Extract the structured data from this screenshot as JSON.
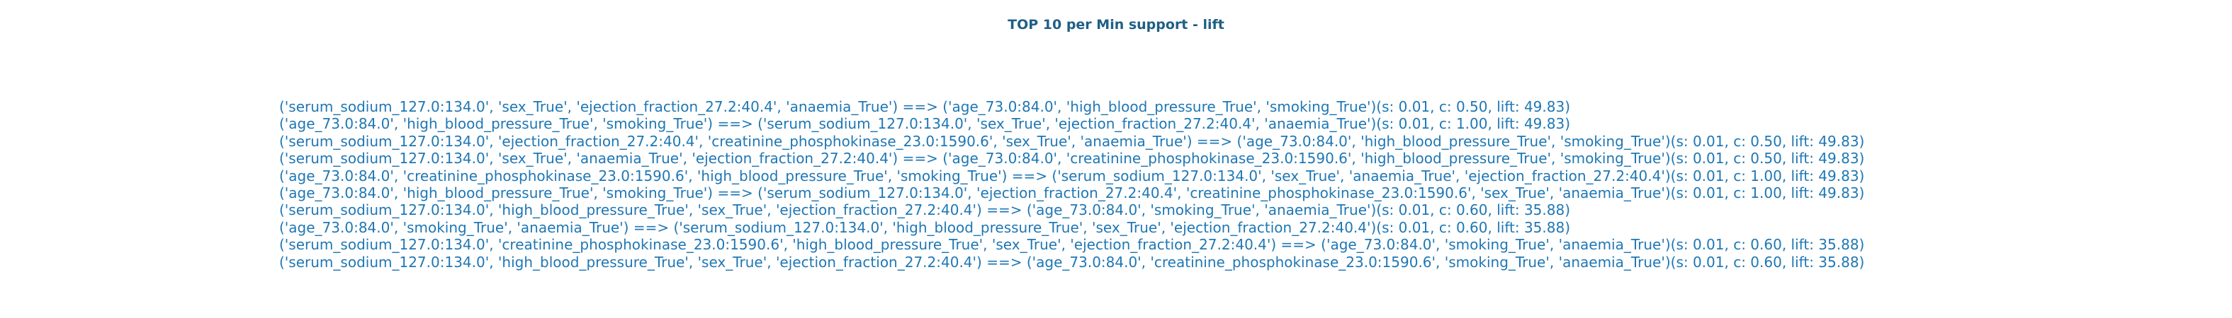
{
  "chart_data": {
    "type": "table",
    "title": "TOP 10 per Min support - lift",
    "rows": [
      "('serum_sodium_127.0:134.0', 'sex_True', 'ejection_fraction_27.2:40.4', 'anaemia_True') ==> ('age_73.0:84.0', 'high_blood_pressure_True', 'smoking_True')(s: 0.01, c: 0.50, lift: 49.83)",
      "('age_73.0:84.0', 'high_blood_pressure_True', 'smoking_True') ==> ('serum_sodium_127.0:134.0', 'sex_True', 'ejection_fraction_27.2:40.4', 'anaemia_True')(s: 0.01, c: 1.00, lift: 49.83)",
      "('serum_sodium_127.0:134.0', 'ejection_fraction_27.2:40.4', 'creatinine_phosphokinase_23.0:1590.6', 'sex_True', 'anaemia_True') ==> ('age_73.0:84.0', 'high_blood_pressure_True', 'smoking_True')(s: 0.01, c: 0.50, lift: 49.83)",
      "('serum_sodium_127.0:134.0', 'sex_True', 'anaemia_True', 'ejection_fraction_27.2:40.4') ==> ('age_73.0:84.0', 'creatinine_phosphokinase_23.0:1590.6', 'high_blood_pressure_True', 'smoking_True')(s: 0.01, c: 0.50, lift: 49.83)",
      "('age_73.0:84.0', 'creatinine_phosphokinase_23.0:1590.6', 'high_blood_pressure_True', 'smoking_True') ==> ('serum_sodium_127.0:134.0', 'sex_True', 'anaemia_True', 'ejection_fraction_27.2:40.4')(s: 0.01, c: 1.00, lift: 49.83)",
      "('age_73.0:84.0', 'high_blood_pressure_True', 'smoking_True') ==> ('serum_sodium_127.0:134.0', 'ejection_fraction_27.2:40.4', 'creatinine_phosphokinase_23.0:1590.6', 'sex_True', 'anaemia_True')(s: 0.01, c: 1.00, lift: 49.83)",
      "('serum_sodium_127.0:134.0', 'high_blood_pressure_True', 'sex_True', 'ejection_fraction_27.2:40.4') ==> ('age_73.0:84.0', 'smoking_True', 'anaemia_True')(s: 0.01, c: 0.60, lift: 35.88)",
      "('age_73.0:84.0', 'smoking_True', 'anaemia_True') ==> ('serum_sodium_127.0:134.0', 'high_blood_pressure_True', 'sex_True', 'ejection_fraction_27.2:40.4')(s: 0.01, c: 0.60, lift: 35.88)",
      "('serum_sodium_127.0:134.0', 'creatinine_phosphokinase_23.0:1590.6', 'high_blood_pressure_True', 'sex_True', 'ejection_fraction_27.2:40.4') ==> ('age_73.0:84.0', 'smoking_True', 'anaemia_True')(s: 0.01, c: 0.60, lift: 35.88)",
      "('serum_sodium_127.0:134.0', 'high_blood_pressure_True', 'sex_True', 'ejection_fraction_27.2:40.4') ==> ('age_73.0:84.0', 'creatinine_phosphokinase_23.0:1590.6', 'smoking_True', 'anaemia_True')(s: 0.01, c: 0.60, lift: 35.88)"
    ],
    "colors": {
      "title": "#1f5f86",
      "text": "#1f77b4"
    }
  }
}
